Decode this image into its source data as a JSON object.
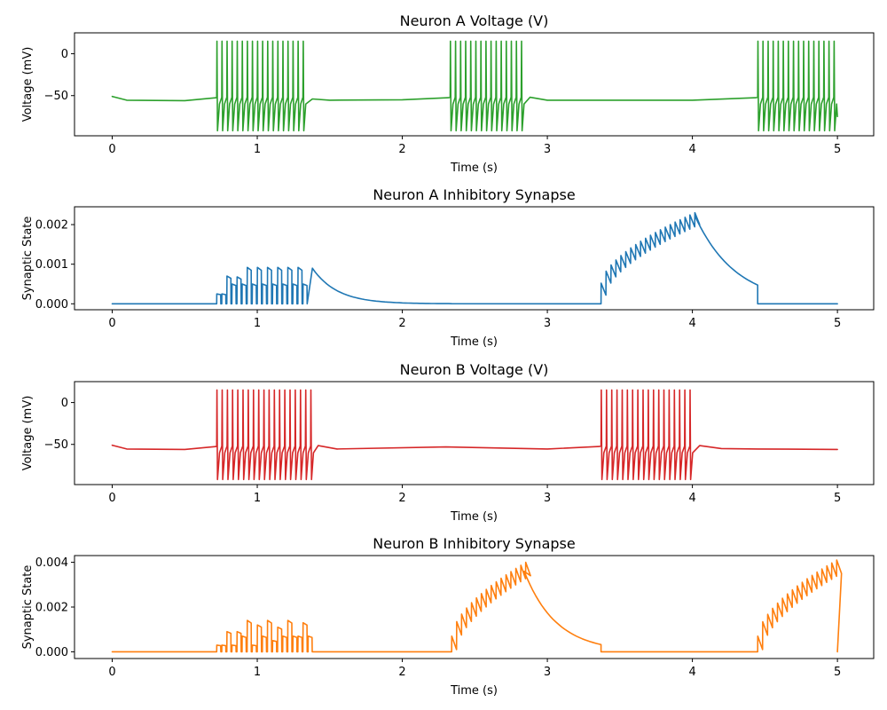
{
  "chart_data": [
    {
      "type": "line",
      "title": "Neuron A Voltage (V)",
      "xlabel": "Time (s)",
      "ylabel": "Voltage (mV)",
      "xlim": [
        -0.26,
        5.25
      ],
      "ylim": [
        -98,
        25
      ],
      "xticks": [
        0,
        1,
        2,
        3,
        4,
        5
      ],
      "xtick_labels": [
        "0",
        "1",
        "2",
        "3",
        "4",
        "5"
      ],
      "yticks": [
        0,
        -50
      ],
      "ytick_labels": [
        "0",
        "−50"
      ],
      "color": "#2ca02c",
      "series": [
        {
          "kind": "voltage",
          "baseline": [
            [
              0,
              -51
            ],
            [
              0.1,
              -55.5
            ],
            [
              0.5,
              -56
            ],
            [
              0.72,
              -52.5
            ]
          ],
          "bursts": [
            {
              "start": 0.72,
              "end": 1.34,
              "isi": 0.035,
              "after": [
                [
                  1.38,
                  -54
                ],
                [
                  1.5,
                  -55.5
                ],
                [
                  2.0,
                  -55
                ],
                [
                  2.32,
                  -52.5
                ]
              ]
            },
            {
              "start": 2.33,
              "end": 2.84,
              "isi": 0.035,
              "after": [
                [
                  2.88,
                  -52
                ],
                [
                  3.0,
                  -55.5
                ],
                [
                  4.0,
                  -55.5
                ],
                [
                  4.44,
                  -52.5
                ]
              ]
            },
            {
              "start": 4.45,
              "end": 4.99,
              "isi": 0.035,
              "after": [
                [
                  5.0,
                  -75
                ]
              ]
            }
          ],
          "spike_peak": 15,
          "spike_trough": -92
        }
      ]
    },
    {
      "type": "line",
      "title": "Neuron A Inhibitory Synapse",
      "xlabel": "Time (s)",
      "ylabel": "Synaptic State",
      "xlim": [
        -0.26,
        5.25
      ],
      "ylim": [
        -0.00015,
        0.00245
      ],
      "xticks": [
        0,
        1,
        2,
        3,
        4,
        5
      ],
      "xtick_labels": [
        "0",
        "1",
        "2",
        "3",
        "4",
        "5"
      ],
      "yticks": [
        0.0,
        0.001,
        0.002
      ],
      "ytick_labels": [
        "0.000",
        "0.001",
        "0.002"
      ],
      "color": "#1f77b4",
      "series": [
        {
          "kind": "synapse",
          "trains": [
            {
              "start": 0.72,
              "end": 1.34,
              "isi": 0.035,
              "peaks": [
                0.00025,
                0.00025,
                0.0007,
                0.0005,
                0.00068,
                0.0005,
                0.00092,
                0.0005,
                0.00092,
                0.0005,
                0.00092,
                0.0005,
                0.00092,
                0.0005,
                0.00092,
                0.0005,
                0.00092,
                0.0005
              ],
              "base": 0.0
            },
            {
              "decay_from": [
                1.38,
                0.0009
              ],
              "decay_to": 2.35,
              "tau": 0.17
            },
            {
              "start": 3.37,
              "end": 4.0,
              "isi": 0.034,
              "ramp": [
                0.00052,
                0.0023
              ],
              "dip": 0.0003
            },
            {
              "decay_from": [
                4.02,
                0.0022
              ],
              "decay_to": 4.45,
              "tau": 0.28,
              "cut_to_zero": 4.45
            }
          ]
        }
      ]
    },
    {
      "type": "line",
      "title": "Neuron B Voltage (V)",
      "xlabel": "Time (s)",
      "ylabel": "Voltage (mV)",
      "xlim": [
        -0.26,
        5.25
      ],
      "ylim": [
        -98,
        25
      ],
      "xticks": [
        0,
        1,
        2,
        3,
        4,
        5
      ],
      "xtick_labels": [
        "0",
        "1",
        "2",
        "3",
        "4",
        "5"
      ],
      "yticks": [
        0,
        -50
      ],
      "ytick_labels": [
        "0",
        "−50"
      ],
      "color": "#d62728",
      "series": [
        {
          "kind": "voltage",
          "baseline": [
            [
              0,
              -51
            ],
            [
              0.1,
              -55.5
            ],
            [
              0.5,
              -56
            ],
            [
              0.72,
              -52.5
            ]
          ],
          "bursts": [
            {
              "start": 0.72,
              "end": 1.38,
              "isi": 0.036,
              "after": [
                [
                  1.42,
                  -51.5
                ],
                [
                  1.55,
                  -55.5
                ],
                [
                  2.3,
                  -53
                ],
                [
                  3.0,
                  -55.5
                ],
                [
                  3.36,
                  -52.5
                ]
              ]
            },
            {
              "start": 3.37,
              "end": 4.01,
              "isi": 0.036,
              "after": [
                [
                  4.05,
                  -51.5
                ],
                [
                  4.2,
                  -55
                ],
                [
                  4.45,
                  -55.5
                ],
                [
                  5.0,
                  -56
                ]
              ]
            }
          ],
          "spike_peak": 15,
          "spike_trough": -92
        }
      ]
    },
    {
      "type": "line",
      "title": "Neuron B Inhibitory Synapse",
      "xlabel": "Time (s)",
      "ylabel": "Synaptic State",
      "xlim": [
        -0.26,
        5.25
      ],
      "ylim": [
        -0.0003,
        0.0043
      ],
      "xticks": [
        0,
        1,
        2,
        3,
        4,
        5
      ],
      "xtick_labels": [
        "0",
        "1",
        "2",
        "3",
        "4",
        "5"
      ],
      "yticks": [
        0.0,
        0.002,
        0.004
      ],
      "ytick_labels": [
        "0.000",
        "0.002",
        "0.004"
      ],
      "color": "#ff7f0e",
      "series": [
        {
          "kind": "synapse",
          "trains": [
            {
              "start": 0.72,
              "end": 1.33,
              "isi": 0.035,
              "peaks": [
                0.0003,
                0.0003,
                0.0009,
                0.0003,
                0.0009,
                0.0007,
                0.0014,
                0.0003,
                0.0012,
                0.0007,
                0.0014,
                0.0005,
                0.0011,
                0.0007,
                0.0014,
                0.0007,
                0.0007,
                0.0013,
                0.0007
              ],
              "base": 0.0
            },
            {
              "start": 2.34,
              "end": 2.84,
              "isi": 0.034,
              "ramp": [
                0.0007,
                0.004
              ],
              "dip": 0.0006
            },
            {
              "decay_from": [
                2.84,
                0.0036
              ],
              "decay_to": 3.37,
              "tau": 0.22,
              "cut_to_zero": 3.37
            },
            {
              "start": 4.45,
              "end": 5.0,
              "isi": 0.034,
              "ramp": [
                0.0007,
                0.0041
              ],
              "dip": 0.0006
            }
          ]
        }
      ]
    }
  ]
}
